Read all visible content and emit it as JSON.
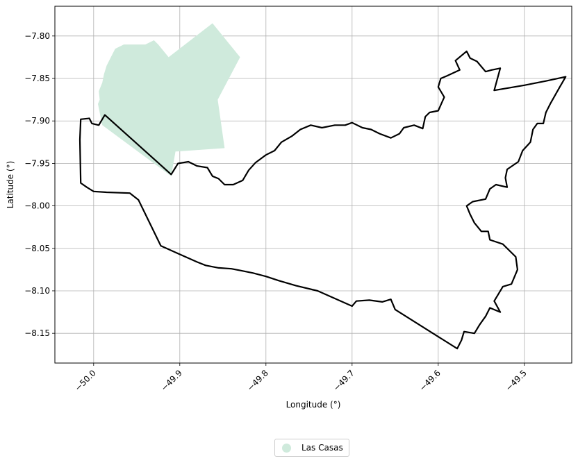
{
  "chart_data": {
    "type": "map",
    "xlabel": "Longitude (°)",
    "ylabel": "Latitude (°)",
    "xlim": [
      -50.045,
      -49.445
    ],
    "ylim": [
      -8.185,
      -7.765
    ],
    "xticks": [
      -50.0,
      -49.9,
      -49.8,
      -49.7,
      -49.6,
      -49.5
    ],
    "xtick_labels": [
      "−50.0",
      "−49.9",
      "−49.8",
      "−49.7",
      "−49.6",
      "−49.5"
    ],
    "yticks": [
      -7.8,
      -7.85,
      -7.9,
      -7.95,
      -8.0,
      -8.05,
      -8.1,
      -8.15
    ],
    "ytick_labels": [
      "−7.80",
      "−7.85",
      "−7.90",
      "−7.95",
      "−8.00",
      "−8.05",
      "−8.10",
      "−8.15"
    ],
    "grid": true,
    "legend_position": "bottom-center",
    "series": [
      {
        "name": "Las Casas",
        "kind": "filled-polygon",
        "color": "#cfeadc",
        "coords": [
          [
            -49.995,
            -7.88
          ],
          [
            -49.993,
            -7.875
          ],
          [
            -49.994,
            -7.865
          ],
          [
            -49.99,
            -7.855
          ],
          [
            -49.988,
            -7.845
          ],
          [
            -49.985,
            -7.835
          ],
          [
            -49.98,
            -7.825
          ],
          [
            -49.975,
            -7.815
          ],
          [
            -49.965,
            -7.81
          ],
          [
            -49.95,
            -7.81
          ],
          [
            -49.94,
            -7.81
          ],
          [
            -49.93,
            -7.805
          ],
          [
            -49.925,
            -7.81
          ],
          [
            -49.913,
            -7.825
          ],
          [
            -49.862,
            -7.785
          ],
          [
            -49.83,
            -7.825
          ],
          [
            -49.856,
            -7.875
          ],
          [
            -49.848,
            -7.932
          ],
          [
            -49.905,
            -7.936
          ],
          [
            -49.91,
            -7.965
          ],
          [
            -49.99,
            -7.905
          ]
        ]
      },
      {
        "name": "",
        "kind": "outline",
        "color": "#000000",
        "coords": [
          [
            -50.015,
            -7.898
          ],
          [
            -50.005,
            -7.897
          ],
          [
            -50.002,
            -7.903
          ],
          [
            -49.994,
            -7.905
          ],
          [
            -49.987,
            -7.893
          ],
          [
            -49.91,
            -7.963
          ],
          [
            -49.902,
            -7.95
          ],
          [
            -49.89,
            -7.948
          ],
          [
            -49.88,
            -7.953
          ],
          [
            -49.868,
            -7.955
          ],
          [
            -49.862,
            -7.965
          ],
          [
            -49.855,
            -7.968
          ],
          [
            -49.848,
            -7.975
          ],
          [
            -49.838,
            -7.975
          ],
          [
            -49.827,
            -7.97
          ],
          [
            -49.82,
            -7.958
          ],
          [
            -49.812,
            -7.949
          ],
          [
            -49.8,
            -7.94
          ],
          [
            -49.79,
            -7.935
          ],
          [
            -49.782,
            -7.925
          ],
          [
            -49.77,
            -7.918
          ],
          [
            -49.76,
            -7.91
          ],
          [
            -49.748,
            -7.905
          ],
          [
            -49.735,
            -7.908
          ],
          [
            -49.72,
            -7.905
          ],
          [
            -49.708,
            -7.905
          ],
          [
            -49.7,
            -7.902
          ],
          [
            -49.688,
            -7.908
          ],
          [
            -49.678,
            -7.91
          ],
          [
            -49.668,
            -7.915
          ],
          [
            -49.655,
            -7.92
          ],
          [
            -49.645,
            -7.915
          ],
          [
            -49.64,
            -7.908
          ],
          [
            -49.628,
            -7.905
          ],
          [
            -49.618,
            -7.909
          ],
          [
            -49.615,
            -7.895
          ],
          [
            -49.61,
            -7.89
          ],
          [
            -49.6,
            -7.888
          ],
          [
            -49.593,
            -7.872
          ],
          [
            -49.6,
            -7.86
          ],
          [
            -49.597,
            -7.85
          ],
          [
            -49.59,
            -7.847
          ],
          [
            -49.575,
            -7.84
          ],
          [
            -49.58,
            -7.829
          ],
          [
            -49.567,
            -7.818
          ],
          [
            -49.563,
            -7.826
          ],
          [
            -49.555,
            -7.83
          ],
          [
            -49.545,
            -7.842
          ],
          [
            -49.538,
            -7.84
          ],
          [
            -49.528,
            -7.838
          ],
          [
            -49.535,
            -7.864
          ],
          [
            -49.5,
            -7.858
          ],
          [
            -49.475,
            -7.853
          ],
          [
            -49.452,
            -7.848
          ],
          [
            -49.46,
            -7.862
          ],
          [
            -49.47,
            -7.88
          ],
          [
            -49.475,
            -7.89
          ],
          [
            -49.478,
            -7.903
          ],
          [
            -49.485,
            -7.903
          ],
          [
            -49.49,
            -7.91
          ],
          [
            -49.493,
            -7.925
          ],
          [
            -49.502,
            -7.935
          ],
          [
            -49.507,
            -7.948
          ],
          [
            -49.52,
            -7.957
          ],
          [
            -49.522,
            -7.967
          ],
          [
            -49.52,
            -7.978
          ],
          [
            -49.533,
            -7.975
          ],
          [
            -49.54,
            -7.98
          ],
          [
            -49.545,
            -7.992
          ],
          [
            -49.56,
            -7.995
          ],
          [
            -49.567,
            -8.0
          ],
          [
            -49.563,
            -8.01
          ],
          [
            -49.558,
            -8.02
          ],
          [
            -49.55,
            -8.03
          ],
          [
            -49.542,
            -8.03
          ],
          [
            -49.54,
            -8.04
          ],
          [
            -49.525,
            -8.045
          ],
          [
            -49.51,
            -8.06
          ],
          [
            -49.508,
            -8.075
          ],
          [
            -49.515,
            -8.092
          ],
          [
            -49.525,
            -8.095
          ],
          [
            -49.535,
            -8.112
          ],
          [
            -49.528,
            -8.125
          ],
          [
            -49.54,
            -8.12
          ],
          [
            -49.545,
            -8.13
          ],
          [
            -49.552,
            -8.14
          ],
          [
            -49.558,
            -8.15
          ],
          [
            -49.57,
            -8.148
          ],
          [
            -49.573,
            -8.158
          ],
          [
            -49.578,
            -8.168
          ],
          [
            -49.65,
            -8.122
          ],
          [
            -49.655,
            -8.11
          ],
          [
            -49.665,
            -8.113
          ],
          [
            -49.68,
            -8.111
          ],
          [
            -49.695,
            -8.112
          ],
          [
            -49.7,
            -8.118
          ],
          [
            -49.74,
            -8.1
          ],
          [
            -49.765,
            -8.094
          ],
          [
            -49.785,
            -8.088
          ],
          [
            -49.8,
            -8.083
          ],
          [
            -49.815,
            -8.079
          ],
          [
            -49.83,
            -8.076
          ],
          [
            -49.84,
            -8.074
          ],
          [
            -49.855,
            -8.073
          ],
          [
            -49.87,
            -8.07
          ],
          [
            -49.88,
            -8.066
          ],
          [
            -49.9,
            -8.057
          ],
          [
            -49.922,
            -8.047
          ],
          [
            -49.948,
            -7.993
          ],
          [
            -49.958,
            -7.985
          ],
          [
            -49.985,
            -7.984
          ],
          [
            -50.0,
            -7.983
          ],
          [
            -50.008,
            -7.978
          ],
          [
            -50.015,
            -7.973
          ],
          [
            -50.016,
            -7.922
          ],
          [
            -50.015,
            -7.898
          ]
        ]
      }
    ]
  }
}
